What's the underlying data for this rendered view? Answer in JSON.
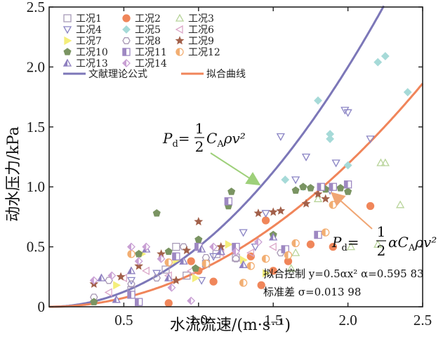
{
  "chart_data": {
    "type": "scatter",
    "xlabel": "水流流速/(m·s⁻¹)",
    "ylabel": "动水压力/kPa",
    "xlim": [
      0,
      2.5
    ],
    "ylim": [
      0,
      2.5
    ],
    "x_ticks": [
      "0.5",
      "1.0",
      "1.5",
      "2.0",
      "2.5"
    ],
    "y_ticks": [
      "0",
      "0.5",
      "1.0",
      "1.5",
      "2.0",
      "2.5"
    ],
    "grid": false,
    "legend_position": "top-left",
    "series": [
      {
        "name": "工况1",
        "marker": "square-open",
        "color": "#a89bb8",
        "points": [
          [
            0.78,
            0.31
          ],
          [
            0.92,
            0.26
          ],
          [
            1.0,
            0.5
          ],
          [
            1.12,
            0.44
          ],
          [
            1.25,
            0.41
          ],
          [
            0.85,
            0.5
          ],
          [
            1.05,
            0.36
          ],
          [
            0.55,
            0.14
          ]
        ]
      },
      {
        "name": "工况2",
        "marker": "circle-filled",
        "color": "#f0865a",
        "points": [
          [
            0.8,
            0.03
          ],
          [
            1.1,
            0.21
          ],
          [
            1.42,
            0.18
          ],
          [
            1.5,
            0.3
          ],
          [
            1.75,
            0.52
          ],
          [
            1.9,
            0.5
          ],
          [
            2.15,
            0.84
          ],
          [
            1.6,
            0.38
          ],
          [
            1.35,
            0.42
          ],
          [
            0.95,
            0.38
          ],
          [
            1.0,
            0.3
          ],
          [
            1.45,
            0.72
          ]
        ]
      },
      {
        "name": "工况3",
        "marker": "triangle-open",
        "color": "#b8d49a",
        "points": [
          [
            1.62,
            0.32
          ],
          [
            2.02,
            0.5
          ],
          [
            2.2,
            0.52
          ],
          [
            2.22,
            1.2
          ],
          [
            2.25,
            1.2
          ],
          [
            2.35,
            0.85
          ],
          [
            1.65,
            0.45
          ],
          [
            1.8,
            0.9
          ]
        ]
      },
      {
        "name": "工况4",
        "marker": "triangle-down-open",
        "color": "#8a84c4",
        "points": [
          [
            1.55,
            1.42
          ],
          [
            1.72,
            1.25
          ],
          [
            1.88,
            0.97
          ],
          [
            1.98,
            1.64
          ],
          [
            2.0,
            1.62
          ],
          [
            1.92,
            1.2
          ],
          [
            2.15,
            1.4
          ],
          [
            1.45,
            0.78
          ],
          [
            1.38,
            0.5
          ],
          [
            1.3,
            0.62
          ],
          [
            1.1,
            0.42
          ],
          [
            1.02,
            0.22
          ],
          [
            0.72,
            0.28
          ],
          [
            0.55,
            0.22
          ],
          [
            1.65,
            1.06
          ]
        ]
      },
      {
        "name": "工况5",
        "marker": "diamond-filled",
        "color": "#a6dad8",
        "points": [
          [
            2.2,
            2.04
          ],
          [
            2.25,
            2.09
          ],
          [
            2.4,
            1.79
          ],
          [
            1.8,
            1.72
          ],
          [
            1.88,
            1.44
          ],
          [
            1.88,
            1.4
          ],
          [
            2.0,
            1.18
          ],
          [
            1.58,
            1.06
          ],
          [
            1.7,
            1.0
          ]
        ]
      },
      {
        "name": "工况6",
        "marker": "triangle-left-open",
        "color": "#dba7c8",
        "points": [
          [
            0.5,
            0.24
          ],
          [
            0.65,
            0.3
          ],
          [
            0.8,
            0.26
          ],
          [
            0.95,
            0.3
          ],
          [
            1.15,
            0.45
          ],
          [
            1.35,
            0.45
          ],
          [
            1.5,
            0.5
          ],
          [
            0.4,
            0.12
          ]
        ]
      },
      {
        "name": "工况7",
        "marker": "triangle-right-filled",
        "color": "#f4ee7a",
        "points": [
          [
            0.62,
            0.44
          ],
          [
            0.85,
            0.39
          ],
          [
            1.2,
            0.52
          ],
          [
            1.3,
            0.39
          ],
          [
            1.45,
            0.28
          ],
          [
            0.45,
            0.18
          ],
          [
            0.98,
            0.24
          ]
        ]
      },
      {
        "name": "工况8",
        "marker": "hexagon-open",
        "color": "#a898b4",
        "points": [
          [
            0.4,
            0.22
          ],
          [
            0.55,
            0.19
          ],
          [
            0.72,
            0.24
          ],
          [
            1.05,
            0.41
          ],
          [
            1.25,
            0.4
          ],
          [
            1.55,
            0.45
          ],
          [
            0.3,
            0.08
          ],
          [
            0.9,
            0.5
          ]
        ]
      },
      {
        "name": "工况9",
        "marker": "star-filled",
        "color": "#a2604a",
        "points": [
          [
            0.3,
            0.19
          ],
          [
            0.48,
            0.25
          ],
          [
            0.6,
            0.34
          ],
          [
            0.75,
            0.44
          ],
          [
            0.92,
            0.47
          ],
          [
            1.0,
            0.71
          ],
          [
            1.4,
            0.78
          ],
          [
            1.5,
            0.79
          ],
          [
            1.55,
            0.8
          ],
          [
            1.72,
            0.86
          ],
          [
            1.8,
            0.94
          ],
          [
            1.85,
            0.9
          ],
          [
            0.85,
            0.22
          ],
          [
            1.15,
            0.5
          ]
        ]
      },
      {
        "name": "工况10",
        "marker": "pentagon-filled",
        "color": "#7a9462",
        "points": [
          [
            0.3,
            0.04
          ],
          [
            0.6,
            0.44
          ],
          [
            0.72,
            0.78
          ],
          [
            0.8,
            0.46
          ],
          [
            1.0,
            0.56
          ],
          [
            1.2,
            0.84
          ],
          [
            1.22,
            0.96
          ],
          [
            1.5,
            0.6
          ],
          [
            1.65,
            0.97
          ],
          [
            1.7,
            1.0
          ],
          [
            1.75,
            0.99
          ],
          [
            1.85,
            0.98
          ],
          [
            1.95,
            0.99
          ],
          [
            2.0,
            0.96
          ],
          [
            0.98,
            0.32
          ]
        ]
      },
      {
        "name": "工况11",
        "marker": "square-half",
        "color": "#9e88c2",
        "points": [
          [
            0.55,
            0.1
          ],
          [
            0.85,
            0.42
          ],
          [
            1.0,
            0.5
          ],
          [
            1.25,
            0.5
          ],
          [
            1.58,
            0.48
          ],
          [
            1.8,
            0.6
          ],
          [
            1.82,
            1.0
          ],
          [
            1.9,
            1.0
          ],
          [
            2.0,
            1.02
          ],
          [
            1.2,
            0.88
          ],
          [
            0.6,
            0.04
          ]
        ]
      },
      {
        "name": "工况12",
        "marker": "circle-half",
        "color": "#f2ae72",
        "points": [
          [
            0.55,
            0.44
          ],
          [
            0.8,
            0.37
          ],
          [
            1.05,
            0.36
          ],
          [
            1.3,
            0.2
          ],
          [
            1.35,
            0.34
          ],
          [
            1.6,
            0.43
          ],
          [
            1.85,
            0.62
          ],
          [
            1.9,
            0.85
          ],
          [
            1.65,
            0.53
          ],
          [
            1.45,
            0.4
          ]
        ]
      },
      {
        "name": "工况13",
        "marker": "triangle-half",
        "color": "#8f80c0",
        "points": [
          [
            0.35,
            0.24
          ],
          [
            0.45,
            0.06
          ],
          [
            0.65,
            0.48
          ],
          [
            0.8,
            0.24
          ],
          [
            1.02,
            0.48
          ],
          [
            1.15,
            0.46
          ],
          [
            1.3,
            0.35
          ],
          [
            1.5,
            0.58
          ],
          [
            0.55,
            0.3
          ],
          [
            0.9,
            0.38
          ]
        ]
      },
      {
        "name": "工况14",
        "marker": "diamond-half",
        "color": "#c9a0d4",
        "points": [
          [
            0.3,
            0.22
          ],
          [
            0.42,
            0.26
          ],
          [
            0.55,
            0.5
          ],
          [
            0.65,
            0.5
          ],
          [
            0.82,
            0.16
          ],
          [
            0.95,
            0.05
          ],
          [
            1.1,
            0.5
          ],
          [
            1.25,
            0.46
          ],
          [
            1.4,
            0.54
          ],
          [
            0.6,
            0.38
          ],
          [
            0.75,
            0.4
          ]
        ]
      }
    ],
    "curves": [
      {
        "name": "文献理论公式",
        "color": "#7c77b8",
        "equation": "y = a*x^2",
        "coefficient": 0.5
      },
      {
        "name": "拟合曲线",
        "color": "#f0855a",
        "equation": "y = a*x^2",
        "coefficient": 0.29792
      }
    ],
    "annotations": {
      "theory_formula": {
        "lhs": "P",
        "lhs_sub": "d",
        "eq": "=",
        "num": "1",
        "den": "2",
        "rhs": "C",
        "rhs_sub": "A",
        "tail": "ρv²"
      },
      "fit_formula": {
        "lhs": "P",
        "lhs_sub": "d",
        "eq": "=",
        "num": "1",
        "den": "2",
        "rhs": "αC",
        "rhs_sub": "A",
        "tail": "ρv²"
      },
      "fit_control": "拟合控制 y=0.5αx²  α=0.595 83",
      "std_error": "标准差 σ=0.013 98"
    }
  }
}
